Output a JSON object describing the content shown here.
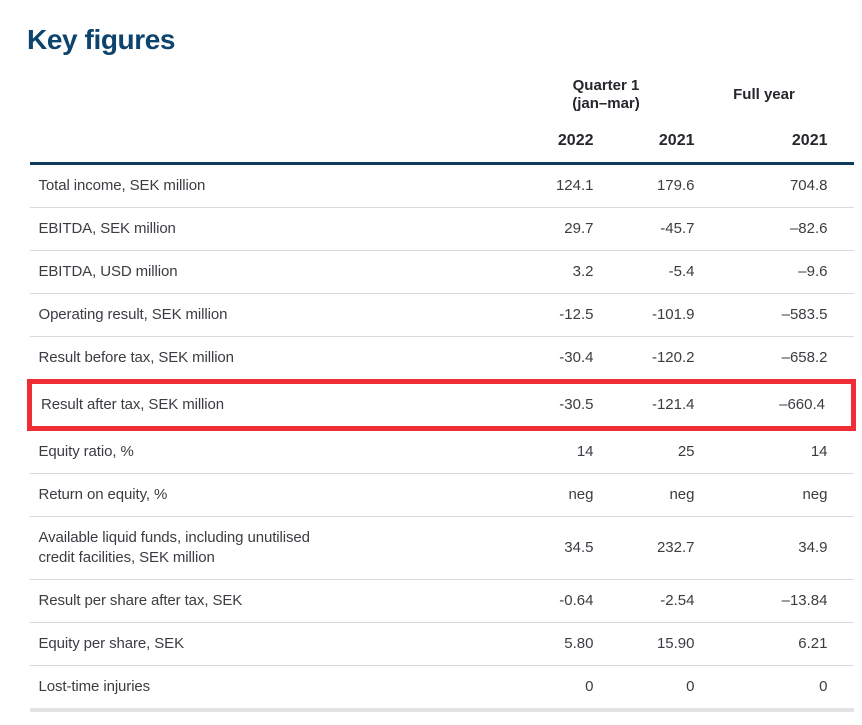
{
  "page": {
    "title": "Key figures"
  },
  "colors": {
    "title_navy": "#0d446e",
    "header_rule_navy": "#113a5e",
    "header_text": "#26262c",
    "body_text": "#3c3c42",
    "row_separator": "#d9d9d9",
    "bottom_bar": "#e3e3e3",
    "highlight_red": "#ee2e34"
  },
  "table": {
    "group_headers": [
      {
        "label": "Quarter 1\n(jan–mar)",
        "span": 2
      },
      {
        "label": "Full year",
        "span": 1
      }
    ],
    "year_headers": [
      "2022",
      "2021",
      "2021"
    ],
    "rows": [
      {
        "label": "Total income, SEK million",
        "values": [
          "124.1",
          "179.6",
          "704.8"
        ],
        "highlighted": false
      },
      {
        "label": "EBITDA, SEK million",
        "values": [
          "29.7",
          "-45.7",
          "–82.6"
        ],
        "highlighted": false
      },
      {
        "label": "EBITDA, USD million",
        "values": [
          "3.2",
          "-5.4",
          "–9.6"
        ],
        "highlighted": false
      },
      {
        "label": "Operating result, SEK million",
        "values": [
          "-12.5",
          "-101.9",
          "–583.5"
        ],
        "highlighted": false
      },
      {
        "label": "Result before tax, SEK million",
        "values": [
          "-30.4",
          "-120.2",
          "–658.2"
        ],
        "highlighted": false
      },
      {
        "label": "Result after tax, SEK million",
        "values": [
          "-30.5",
          "-121.4",
          "–660.4"
        ],
        "highlighted": true
      },
      {
        "label": "Equity ratio, %",
        "values": [
          "14",
          "25",
          "14"
        ],
        "highlighted": false
      },
      {
        "label": "Return on equity, %",
        "values": [
          "neg",
          "neg",
          "neg"
        ],
        "highlighted": false
      },
      {
        "label": "Available liquid funds, including unutilised\ncredit facilities, SEK million",
        "values": [
          "34.5",
          "232.7",
          "34.9"
        ],
        "highlighted": false
      },
      {
        "label": "Result per share after tax, SEK",
        "values": [
          "-0.64",
          "-2.54",
          "–13.84"
        ],
        "highlighted": false
      },
      {
        "label": "Equity per share, SEK",
        "values": [
          "5.80",
          "15.90",
          "6.21"
        ],
        "highlighted": false
      },
      {
        "label": "Lost-time injuries",
        "values": [
          "0",
          "0",
          "0"
        ],
        "highlighted": false
      }
    ]
  }
}
